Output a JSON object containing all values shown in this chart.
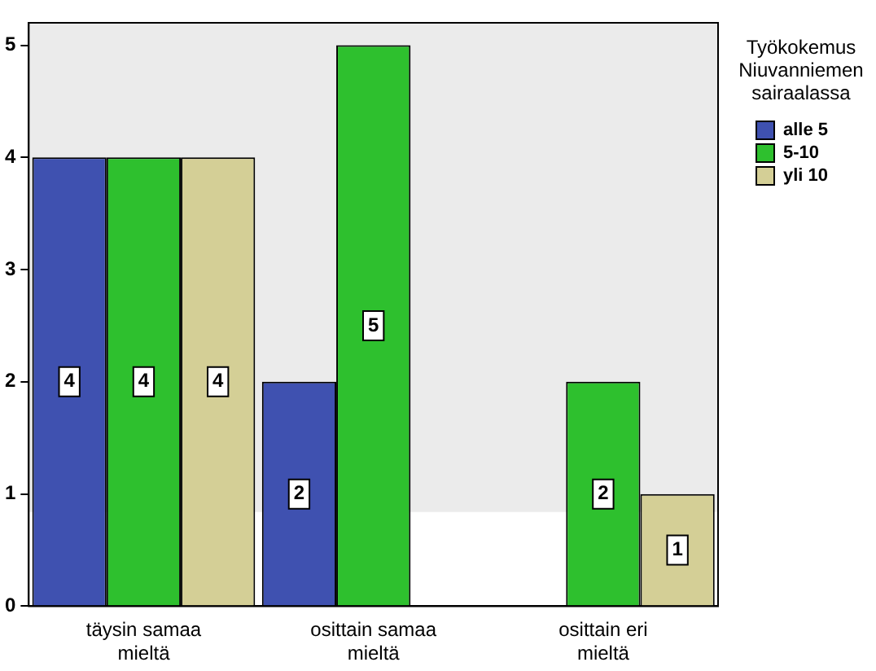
{
  "chart_data": {
    "type": "bar",
    "legend_title": "Työkokemus Niuvanniemen sairaalassa",
    "categories": [
      "täysin samaa mieltä",
      "osittain samaa mieltä",
      "osittain eri mieltä"
    ],
    "series": [
      {
        "name": "alle 5",
        "color": "#3f51b0",
        "values": [
          4,
          2,
          null
        ]
      },
      {
        "name": "5-10",
        "color": "#2ec02e",
        "values": [
          4,
          5,
          2
        ]
      },
      {
        "name": "yli 10",
        "color": "#d4cf96",
        "values": [
          4,
          null,
          1
        ]
      }
    ],
    "ylim": [
      0,
      5.2
    ],
    "yticks": [
      0,
      1,
      2,
      3,
      4,
      5
    ],
    "grid": false,
    "legend": "top right",
    "data_labels": true,
    "bands": [
      {
        "axis": "y",
        "from": 0.84,
        "to": 5.2,
        "color": "#ebebeb"
      }
    ]
  }
}
